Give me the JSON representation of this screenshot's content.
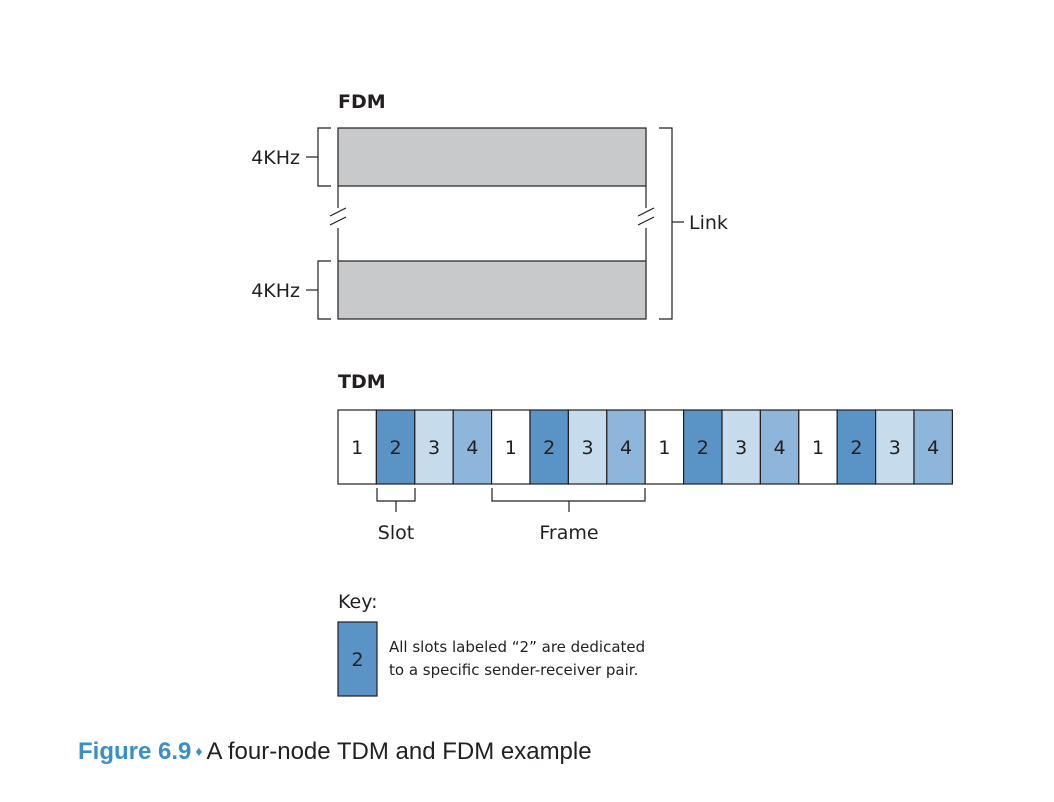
{
  "fdm": {
    "title": "FDM",
    "band_top_label": "4KHz",
    "band_bottom_label": "4KHz",
    "link_label": "Link"
  },
  "tdm": {
    "title": "TDM",
    "slots": [
      "1",
      "2",
      "3",
      "4",
      "1",
      "2",
      "3",
      "4",
      "1",
      "2",
      "3",
      "4",
      "1",
      "2",
      "3",
      "4"
    ],
    "slot_label": "Slot",
    "frame_label": "Frame"
  },
  "key": {
    "title": "Key:",
    "swatch_label": "2",
    "line1": "All slots labeled “2” are dedicated",
    "line2": "to a specific sender-receiver pair."
  },
  "caption": {
    "figure_number": "Figure 6.9",
    "separator": "♦",
    "text": "A four-node TDM and FDM example"
  },
  "colors": {
    "band_fill": "#c8c9cb",
    "slot_1": "#ffffff",
    "slot_2": "#5a93c5",
    "slot_3": "#c6dced",
    "slot_4": "#8db6da",
    "caption_accent": "#3a8fc8"
  }
}
